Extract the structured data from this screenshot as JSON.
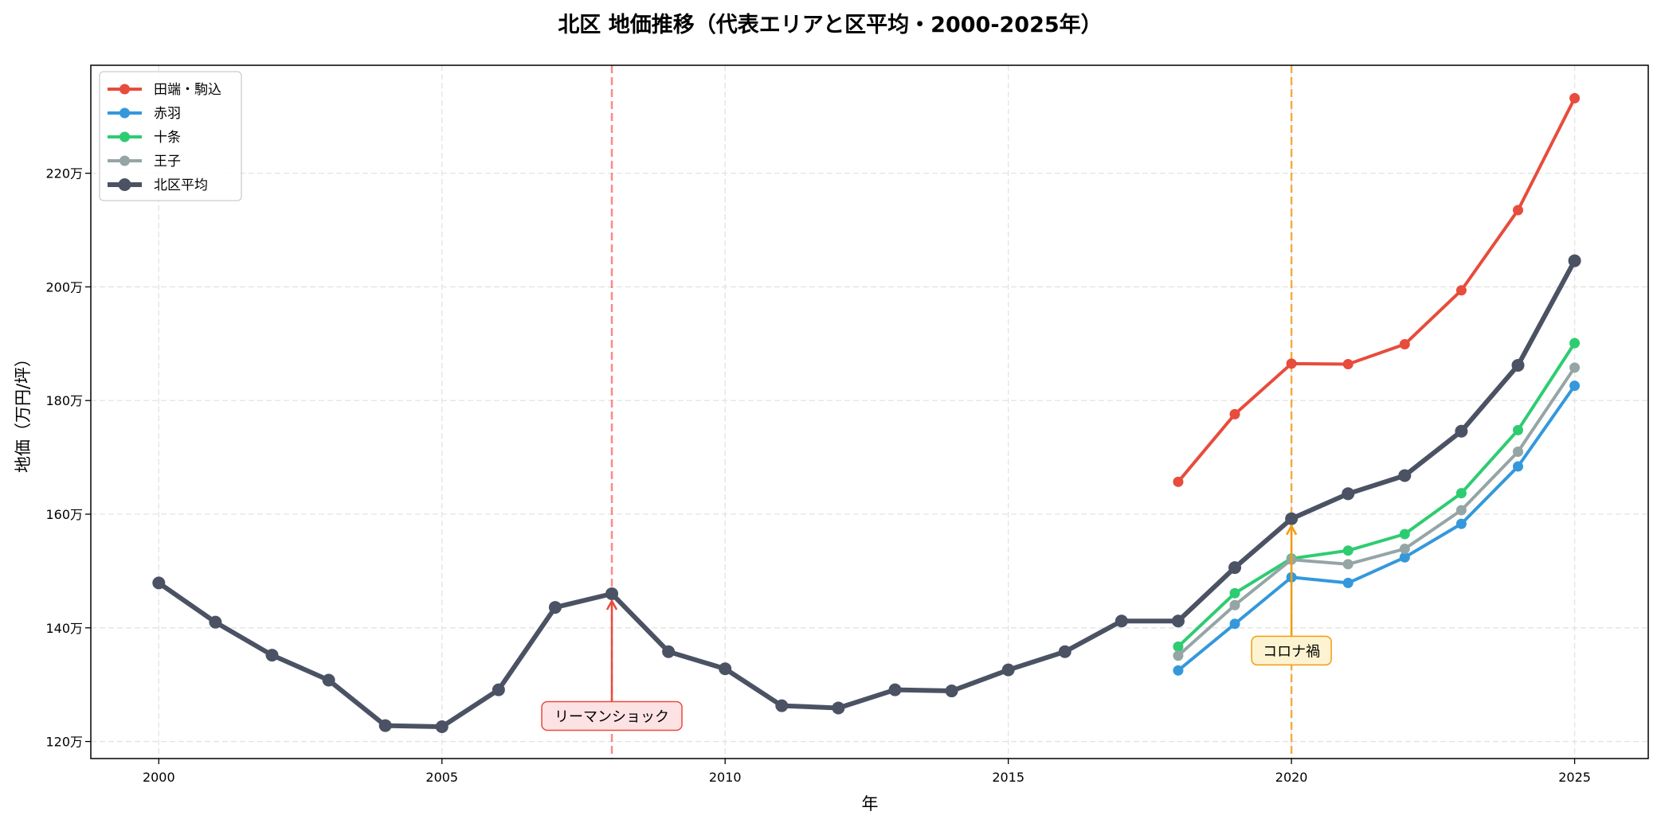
{
  "chart_data": {
    "type": "line",
    "title": "北区 地価推移（代表エリアと区平均・2000-2025年）",
    "xlabel": "年",
    "ylabel": "地価（万円/坪）",
    "xlim": [
      1998.8,
      2026.3
    ],
    "ylim": [
      117,
      239
    ],
    "x_ticks": [
      2000,
      2005,
      2010,
      2015,
      2020,
      2025
    ],
    "x_tick_labels": [
      "2000",
      "2005",
      "2010",
      "2015",
      "2020",
      "2025"
    ],
    "y_ticks": [
      120,
      140,
      160,
      180,
      200,
      220
    ],
    "y_tick_labels": [
      "120万",
      "140万",
      "160万",
      "180万",
      "200万",
      "220万"
    ],
    "grid": true,
    "legend_position": "top-left",
    "series": [
      {
        "name": "田端・駒込",
        "color": "#e74c3c",
        "width": 4,
        "x": [
          2018,
          2019,
          2020,
          2021,
          2022,
          2023,
          2024,
          2025
        ],
        "values": [
          165.7,
          177.6,
          186.5,
          186.4,
          189.9,
          199.4,
          213.5,
          233.2
        ]
      },
      {
        "name": "赤羽",
        "color": "#3498db",
        "width": 4,
        "x": [
          2018,
          2019,
          2020,
          2021,
          2022,
          2023,
          2024,
          2025
        ],
        "values": [
          132.5,
          140.7,
          148.9,
          147.9,
          152.4,
          158.3,
          168.4,
          182.6
        ]
      },
      {
        "name": "十条",
        "color": "#2ecc71",
        "width": 4,
        "x": [
          2018,
          2019,
          2020,
          2021,
          2022,
          2023,
          2024,
          2025
        ],
        "values": [
          136.7,
          146.1,
          152.2,
          153.6,
          156.5,
          163.7,
          174.8,
          190.1
        ]
      },
      {
        "name": "王子",
        "color": "#95a5a6",
        "width": 4,
        "x": [
          2018,
          2019,
          2020,
          2021,
          2022,
          2023,
          2024,
          2025
        ],
        "values": [
          135.1,
          144.0,
          152.0,
          151.2,
          153.9,
          160.7,
          171.0,
          185.8
        ]
      },
      {
        "name": "北区平均",
        "color": "#4a5263",
        "width": 6,
        "x": [
          2000,
          2001,
          2002,
          2003,
          2004,
          2005,
          2006,
          2007,
          2008,
          2009,
          2010,
          2011,
          2012,
          2013,
          2014,
          2015,
          2016,
          2017,
          2018,
          2019,
          2020,
          2021,
          2022,
          2023,
          2024,
          2025
        ],
        "values": [
          147.9,
          141.0,
          135.2,
          130.8,
          122.8,
          122.6,
          129.1,
          143.6,
          146.0,
          135.8,
          132.8,
          126.3,
          125.9,
          129.1,
          128.9,
          132.6,
          135.8,
          141.2,
          141.2,
          150.6,
          159.2,
          163.6,
          166.8,
          174.6,
          186.2,
          204.6
        ]
      }
    ],
    "vlines": [
      {
        "x": 2008,
        "color": "#ff6b6b"
      },
      {
        "x": 2020,
        "color": "#f39c12"
      }
    ],
    "annotations": [
      {
        "text": "リーマンショック",
        "x": 2008,
        "y": 146.0,
        "text_x": 2008,
        "text_y": 124.5,
        "color": "#e74c3c",
        "box_fill": "#fde2e4"
      },
      {
        "text": "コロナ禍",
        "x": 2020,
        "y": 159.2,
        "text_x": 2020,
        "text_y": 136.0,
        "color": "#f39c12",
        "box_fill": "#fdf3d0"
      }
    ]
  }
}
